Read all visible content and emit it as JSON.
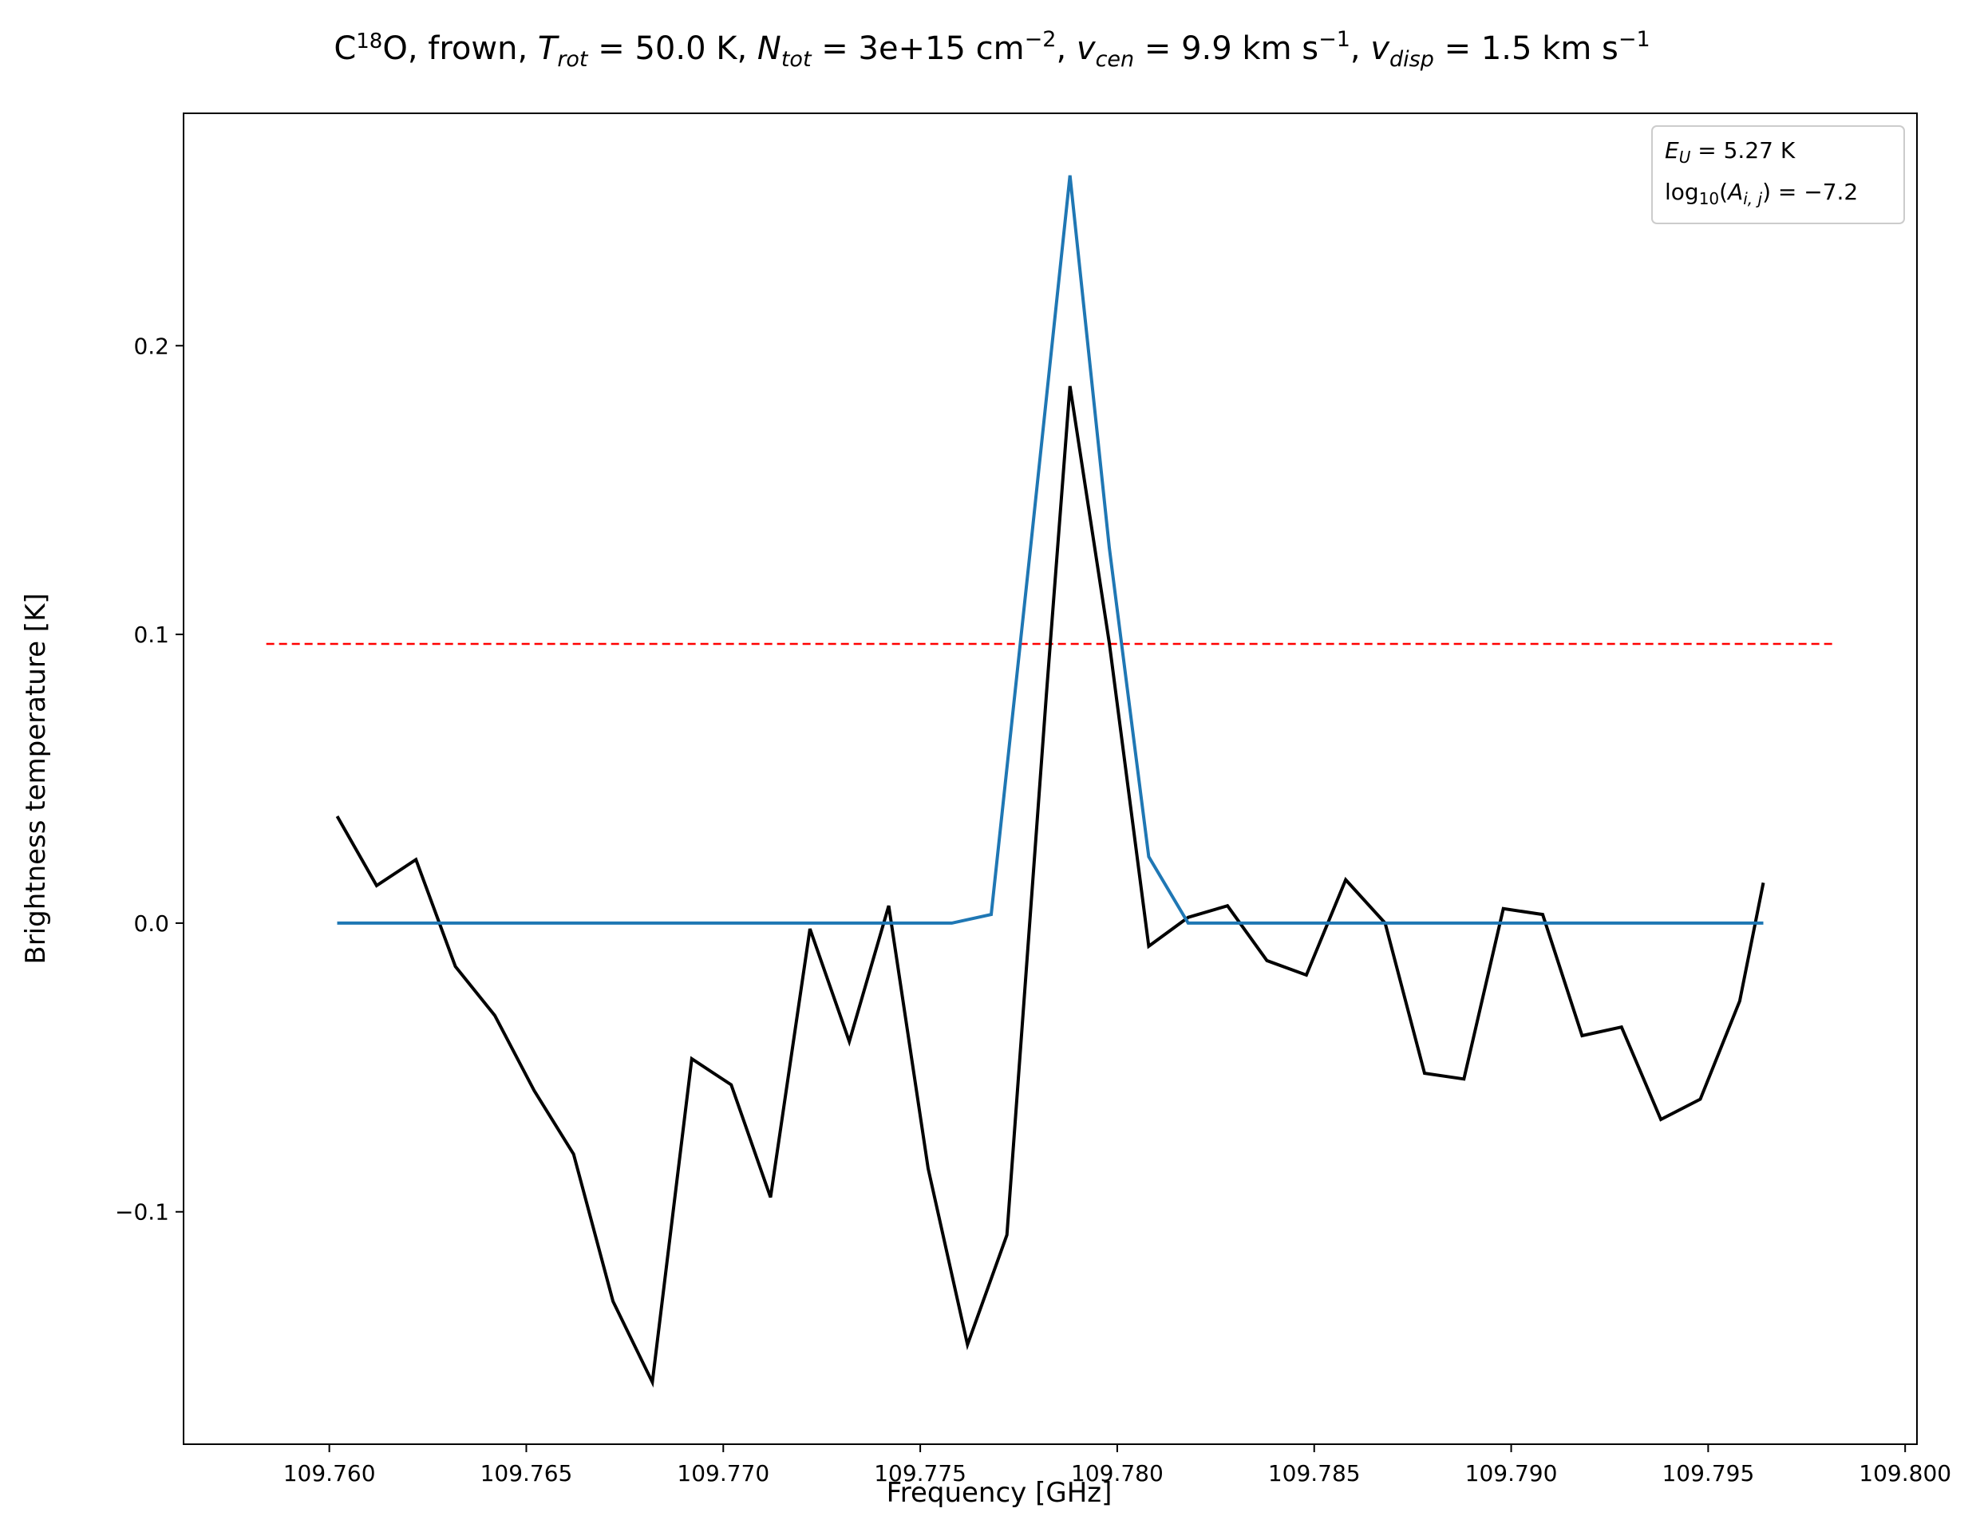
{
  "chart_data": {
    "type": "line",
    "title": {
      "species_base": "C",
      "species_sup": "18",
      "species_end": "O, frown, ",
      "trot_sym": "T",
      "trot_sub": "rot",
      "trot_val": " =  50.0 K, ",
      "ntot_sym": "N",
      "ntot_sub": "tot",
      "ntot_val": " =  3e+15 cm",
      "ntot_exp": "−2",
      "comma1": ", ",
      "vcen_sym": "v",
      "vcen_sub": "cen",
      "vcen_val": " =  9.9 km s",
      "vcen_exp": "−1",
      "comma2": ", ",
      "vdisp_sym": "v",
      "vdisp_sub": "disp",
      "vdisp_val": " =  1.5 km s",
      "vdisp_exp": "−1"
    },
    "xlabel": "Frequency [GHz]",
    "ylabel": "Brightness temperature [K]",
    "xlim": [
      109.7563,
      109.8003
    ],
    "ylim": [
      -0.1805,
      0.2805
    ],
    "xticks": [
      109.76,
      109.765,
      109.77,
      109.775,
      109.78,
      109.785,
      109.79,
      109.795,
      109.8
    ],
    "xtick_labels": [
      "109.760",
      "109.765",
      "109.770",
      "109.775",
      "109.780",
      "109.785",
      "109.790",
      "109.795",
      "109.800"
    ],
    "yticks": [
      -0.1,
      0.0,
      0.1,
      0.2
    ],
    "ytick_labels": [
      "−0.1",
      "0.0",
      "0.1",
      "0.2"
    ],
    "grid": false,
    "legend_position": "top-right",
    "legend": {
      "eu_sym": "E",
      "eu_sub": "U",
      "eu_val": " = 5.27 K",
      "log_prefix": "log",
      "log_sub": "10",
      "log_open": "(",
      "a_sym": "A",
      "a_sub": "i, j",
      "log_val": ") = −7.2"
    },
    "threshold": {
      "y": 0.0967,
      "x_range": [
        109.7584,
        109.7982
      ],
      "color": "#ff0000",
      "style": "dashed"
    },
    "series": [
      {
        "color": "#000000",
        "x": [
          109.7602,
          109.7612,
          109.7622,
          109.7632,
          109.7642,
          109.7652,
          109.7662,
          109.7672,
          109.7682,
          109.7692,
          109.7702,
          109.7712,
          109.7722,
          109.7732,
          109.7742,
          109.7752,
          109.7762,
          109.7772,
          109.7782,
          109.7788,
          109.7798,
          109.7808,
          109.7818,
          109.7828,
          109.7838,
          109.7848,
          109.7858,
          109.7868,
          109.7878,
          109.7888,
          109.7898,
          109.7908,
          109.7918,
          109.7928,
          109.7938,
          109.7948,
          109.7958,
          109.7964
        ],
        "y": [
          0.037,
          0.013,
          0.022,
          -0.015,
          -0.032,
          -0.058,
          -0.08,
          -0.131,
          -0.159,
          -0.047,
          -0.056,
          -0.095,
          -0.002,
          -0.041,
          0.006,
          -0.085,
          -0.146,
          -0.108,
          0.079,
          0.186,
          0.097,
          -0.008,
          0.002,
          0.006,
          -0.013,
          -0.018,
          0.015,
          0.0,
          -0.052,
          -0.054,
          0.005,
          0.003,
          -0.039,
          -0.036,
          -0.068,
          -0.061,
          -0.027,
          0.014
        ]
      },
      {
        "color": "#1f77b4",
        "x": [
          109.7602,
          109.7758,
          109.7768,
          109.7778,
          109.7788,
          109.7798,
          109.7808,
          109.7818,
          109.7964
        ],
        "y": [
          0.0,
          0.0,
          0.003,
          0.13,
          0.259,
          0.13,
          0.023,
          0.0,
          0.0
        ]
      }
    ]
  }
}
